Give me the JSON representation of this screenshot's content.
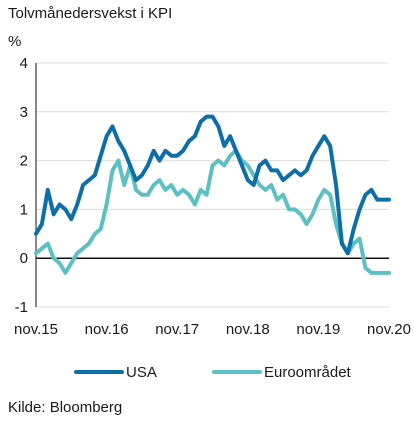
{
  "chart_data": {
    "type": "line",
    "title": "Tolvmånedersvekst i KPI",
    "ylabel": "%",
    "xlabel": "",
    "source": "Kilde: Bloomberg",
    "ylim": [
      -1,
      4
    ],
    "yticks": [
      "-1",
      "0",
      "1",
      "2",
      "3",
      "4"
    ],
    "xlim": [
      0,
      60
    ],
    "xticks": [
      {
        "label": "nov.15",
        "x": 0
      },
      {
        "label": "nov.16",
        "x": 12
      },
      {
        "label": "nov.17",
        "x": 24
      },
      {
        "label": "nov.18",
        "x": 36
      },
      {
        "label": "nov.19",
        "x": 48
      },
      {
        "label": "nov.20",
        "x": 60
      }
    ],
    "grid": "horizontal",
    "legend_position": "bottom",
    "series": [
      {
        "name": "USA",
        "color": "#0e6fa6",
        "values": [
          0.5,
          0.7,
          1.4,
          0.9,
          1.1,
          1.0,
          0.8,
          1.1,
          1.5,
          1.6,
          1.7,
          2.1,
          2.5,
          2.7,
          2.4,
          2.2,
          1.9,
          1.6,
          1.7,
          1.9,
          2.2,
          2.0,
          2.2,
          2.1,
          2.1,
          2.2,
          2.4,
          2.5,
          2.8,
          2.9,
          2.9,
          2.7,
          2.3,
          2.5,
          2.2,
          1.9,
          1.6,
          1.5,
          1.9,
          2.0,
          1.8,
          1.8,
          1.6,
          1.7,
          1.8,
          1.7,
          1.8,
          2.1,
          2.3,
          2.5,
          2.3,
          1.5,
          0.3,
          0.1,
          0.6,
          1.0,
          1.3,
          1.4,
          1.2,
          1.2,
          1.2
        ]
      },
      {
        "name": "Euroområdet",
        "color": "#5dc0c2",
        "values": [
          0.1,
          0.2,
          0.3,
          0.0,
          -0.1,
          -0.3,
          -0.1,
          0.1,
          0.2,
          0.3,
          0.5,
          0.6,
          1.1,
          1.8,
          2.0,
          1.5,
          1.9,
          1.4,
          1.3,
          1.3,
          1.5,
          1.6,
          1.4,
          1.5,
          1.3,
          1.4,
          1.3,
          1.1,
          1.4,
          1.3,
          1.9,
          2.0,
          1.9,
          2.1,
          2.2,
          2.0,
          1.9,
          1.7,
          1.5,
          1.4,
          1.5,
          1.2,
          1.3,
          1.0,
          1.0,
          0.9,
          0.7,
          0.9,
          1.2,
          1.4,
          1.3,
          0.7,
          0.3,
          0.1,
          0.3,
          0.4,
          -0.2,
          -0.3,
          -0.3,
          -0.3,
          -0.3
        ]
      }
    ]
  }
}
